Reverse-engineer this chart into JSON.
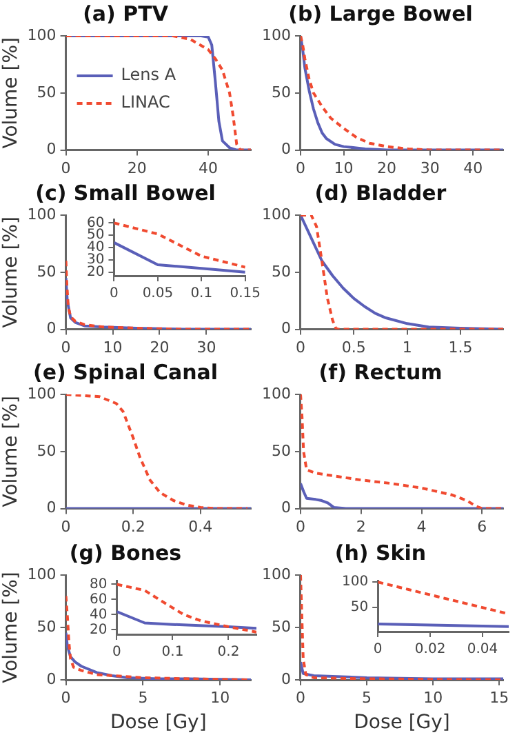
{
  "chart_data": [
    {
      "type": "line",
      "title": "(a) PTV",
      "ylabel": "Volume [%]",
      "legend": "left",
      "xlim": [
        0,
        52
      ],
      "xticks": [
        0,
        20,
        40
      ],
      "ylim": [
        0,
        100
      ],
      "yticks": [
        0,
        50,
        100
      ],
      "series": [
        {
          "name": "Lens A",
          "color": "#5a5fb8",
          "line_style": "solid",
          "x": [
            0,
            38,
            40,
            41,
            42,
            43,
            44,
            46,
            48,
            52
          ],
          "values": [
            100,
            100,
            99,
            92,
            60,
            25,
            8,
            2,
            0,
            0
          ]
        },
        {
          "name": "LINAC",
          "color": "#f04a30",
          "line_style": "dashed",
          "x": [
            0,
            30,
            35,
            40,
            42,
            44,
            46,
            47,
            48,
            49,
            52
          ],
          "values": [
            100,
            100,
            97,
            88,
            80,
            70,
            50,
            30,
            5,
            0,
            0
          ]
        }
      ]
    },
    {
      "type": "line",
      "title": "(b) Large Bowel",
      "xlim": [
        0,
        47
      ],
      "xticks": [
        0,
        10,
        20,
        30,
        40
      ],
      "ylim": [
        0,
        100
      ],
      "yticks": [
        0,
        50,
        100
      ],
      "series": [
        {
          "color": "#5a5fb8",
          "line_style": "solid",
          "x": [
            0,
            0.5,
            1,
            2,
            3,
            4,
            5,
            6,
            8,
            10,
            15,
            20,
            47
          ],
          "values": [
            100,
            88,
            72,
            52,
            36,
            24,
            15,
            10,
            5,
            3,
            1,
            0,
            0
          ]
        },
        {
          "color": "#f04a30",
          "line_style": "dashed",
          "x": [
            0,
            0.5,
            1,
            2,
            3,
            5,
            7,
            10,
            13,
            16,
            20,
            25,
            30,
            47
          ],
          "values": [
            100,
            92,
            80,
            62,
            50,
            38,
            28,
            19,
            11,
            6,
            3,
            1,
            0,
            0
          ]
        }
      ]
    },
    {
      "type": "line",
      "title": "(c) Small Bowel",
      "ylabel": "Volume [%]",
      "xlim": [
        0,
        39.5
      ],
      "xticks": [
        0,
        10,
        20,
        30
      ],
      "ylim": [
        0,
        100
      ],
      "yticks": [
        0,
        50,
        100
      ],
      "series": [
        {
          "color": "#5a5fb8",
          "line_style": "solid",
          "x": [
            0,
            0.3,
            1,
            2,
            4,
            8,
            15,
            25,
            39.5
          ],
          "values": [
            45,
            25,
            10,
            6,
            3,
            2,
            1,
            0,
            0
          ]
        },
        {
          "color": "#f04a30",
          "line_style": "dashed",
          "x": [
            0,
            0.2,
            0.5,
            1,
            2,
            4,
            8,
            15,
            25,
            39.5
          ],
          "values": [
            60,
            40,
            20,
            11,
            7,
            4,
            2,
            1,
            0,
            0
          ]
        }
      ]
    },
    {
      "type": "line",
      "xlim": [
        0,
        0.15
      ],
      "xticks": [
        0,
        0.05,
        0.1,
        0.15
      ],
      "ylim": [
        17,
        63
      ],
      "yticks": [
        20,
        30,
        40,
        50,
        60
      ],
      "series": [
        {
          "color": "#5a5fb8",
          "line_style": "solid",
          "x": [
            0,
            0.05,
            0.1,
            0.15
          ],
          "values": [
            44,
            26,
            23,
            20
          ]
        },
        {
          "color": "#f04a30",
          "line_style": "dashed",
          "x": [
            0,
            0.05,
            0.075,
            0.1,
            0.15
          ],
          "values": [
            60,
            51,
            42,
            33,
            24
          ]
        }
      ]
    },
    {
      "type": "line",
      "title": "(d) Bladder",
      "xlim": [
        0,
        1.9
      ],
      "xticks": [
        0,
        0.5,
        1,
        1.5
      ],
      "ylim": [
        0,
        100
      ],
      "yticks": [
        0,
        50,
        100
      ],
      "series": [
        {
          "color": "#5a5fb8",
          "line_style": "solid",
          "x": [
            0,
            0.1,
            0.2,
            0.3,
            0.4,
            0.5,
            0.6,
            0.7,
            0.8,
            1,
            1.2,
            1.5,
            1.9
          ],
          "values": [
            100,
            80,
            60,
            47,
            36,
            27,
            20,
            14,
            10,
            5,
            2,
            1,
            0
          ]
        },
        {
          "color": "#f04a30",
          "line_style": "dashed",
          "x": [
            0,
            0.1,
            0.15,
            0.2,
            0.25,
            0.3,
            0.33,
            0.35,
            1.9
          ],
          "values": [
            100,
            100,
            90,
            60,
            28,
            8,
            1,
            0,
            0
          ]
        }
      ]
    },
    {
      "type": "line",
      "title": "(e) Spinal Canal",
      "ylabel": "Volume [%]",
      "xlim": [
        0,
        0.55
      ],
      "xticks": [
        0,
        0.2,
        0.4
      ],
      "ylim": [
        0,
        100
      ],
      "yticks": [
        0,
        50,
        100
      ],
      "series": [
        {
          "color": "#5a5fb8",
          "line_style": "solid",
          "x": [
            0,
            0.55
          ],
          "values": [
            0,
            0
          ]
        },
        {
          "color": "#f04a30",
          "line_style": "dashed",
          "x": [
            0,
            0.05,
            0.1,
            0.15,
            0.17,
            0.2,
            0.22,
            0.25,
            0.28,
            0.32,
            0.36,
            0.4,
            0.45,
            0.54
          ],
          "values": [
            100,
            99,
            98,
            92,
            85,
            62,
            45,
            25,
            14,
            7,
            3,
            1,
            0,
            0
          ]
        }
      ]
    },
    {
      "type": "line",
      "title": "(f) Rectum",
      "xlim": [
        0,
        6.7
      ],
      "xticks": [
        0,
        2,
        4,
        6
      ],
      "ylim": [
        0,
        100
      ],
      "yticks": [
        0,
        50,
        100
      ],
      "series": [
        {
          "color": "#5a5fb8",
          "line_style": "solid",
          "x": [
            0,
            0.1,
            0.2,
            0.5,
            0.7,
            0.9,
            1.1,
            1.5,
            6.7
          ],
          "values": [
            22,
            15,
            9,
            8,
            7,
            5,
            1,
            0,
            0
          ]
        },
        {
          "color": "#f04a30",
          "line_style": "dashed",
          "x": [
            0,
            0.05,
            0.1,
            0.2,
            0.5,
            1,
            2,
            3,
            4,
            5,
            5.5,
            5.8,
            6,
            6.7
          ],
          "values": [
            100,
            80,
            50,
            34,
            31,
            29,
            25,
            22,
            18,
            12,
            7,
            2,
            0,
            0
          ]
        }
      ]
    },
    {
      "type": "line",
      "title": "(g) Bones",
      "xlabel": "Dose [Gy]",
      "ylabel": "Volume [%]",
      "xlim": [
        0,
        12
      ],
      "xticks": [
        0,
        5,
        10
      ],
      "ylim": [
        0,
        100
      ],
      "yticks": [
        0,
        50,
        100
      ],
      "series": [
        {
          "color": "#5a5fb8",
          "line_style": "solid",
          "x": [
            0,
            0.1,
            0.3,
            0.6,
            1,
            2,
            3,
            4,
            6,
            8,
            12
          ],
          "values": [
            45,
            32,
            22,
            17,
            13,
            7,
            4,
            2,
            1,
            1,
            0
          ]
        },
        {
          "color": "#f04a30",
          "line_style": "dashed",
          "x": [
            0,
            0.1,
            0.2,
            0.3,
            0.5,
            1,
            2,
            3,
            5,
            8,
            12
          ],
          "values": [
            80,
            60,
            35,
            20,
            12,
            9,
            5,
            4,
            2,
            1,
            0
          ]
        }
      ]
    },
    {
      "type": "line",
      "xlim": [
        0,
        0.25
      ],
      "xticks": [
        0,
        0.1,
        0.2
      ],
      "ylim": [
        14,
        85
      ],
      "yticks": [
        20,
        40,
        60,
        80
      ],
      "series": [
        {
          "color": "#5a5fb8",
          "line_style": "solid",
          "x": [
            0,
            0.05,
            0.1,
            0.2,
            0.25
          ],
          "values": [
            44,
            29,
            27,
            24,
            22
          ]
        },
        {
          "color": "#f04a30",
          "line_style": "dashed",
          "x": [
            0,
            0.05,
            0.08,
            0.12,
            0.15,
            0.2,
            0.25
          ],
          "values": [
            80,
            72,
            58,
            40,
            32,
            24,
            17
          ]
        }
      ]
    },
    {
      "type": "line",
      "title": "(h) Skin",
      "xlabel": "Dose [Gy]",
      "xlim": [
        0,
        15.3
      ],
      "xticks": [
        0,
        5,
        10,
        15
      ],
      "ylim": [
        0,
        100
      ],
      "yticks": [
        0,
        50,
        100
      ],
      "series": [
        {
          "color": "#5a5fb8",
          "line_style": "solid",
          "x": [
            0,
            0.2,
            1,
            5,
            10,
            15.3
          ],
          "values": [
            17,
            6,
            4,
            2,
            1,
            1
          ]
        },
        {
          "color": "#f04a30",
          "line_style": "dashed",
          "x": [
            0,
            0.1,
            0.2,
            0.4,
            1,
            5,
            15.3
          ],
          "values": [
            100,
            60,
            20,
            5,
            2,
            1,
            0
          ]
        }
      ]
    },
    {
      "type": "line",
      "xlim": [
        0,
        0.05
      ],
      "xticks": [
        0,
        0.02,
        0.04
      ],
      "ylim": [
        2,
        103
      ],
      "yticks": [
        50,
        100
      ],
      "series": [
        {
          "color": "#5a5fb8",
          "line_style": "solid",
          "x": [
            0,
            0.05
          ],
          "values": [
            17,
            12
          ]
        },
        {
          "color": "#f04a30",
          "line_style": "dashed",
          "x": [
            0,
            0.05
          ],
          "values": [
            100,
            37
          ]
        }
      ]
    }
  ]
}
